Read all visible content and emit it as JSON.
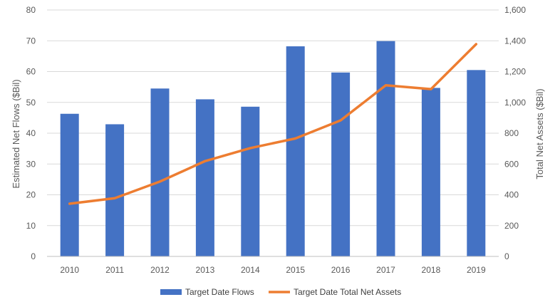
{
  "chart_data": {
    "type": "bar",
    "title": "",
    "categories": [
      "2010",
      "2011",
      "2012",
      "2013",
      "2014",
      "2015",
      "2016",
      "2017",
      "2018",
      "2019"
    ],
    "series": [
      {
        "name": "Target Date Flows",
        "type": "bar",
        "axis": "left",
        "color": "#4472C4",
        "values": [
          46.3,
          42.9,
          54.5,
          51.0,
          48.6,
          68.2,
          59.7,
          69.9,
          54.7,
          60.5
        ]
      },
      {
        "name": "Target Date Total Net Assets",
        "type": "line",
        "axis": "right",
        "color": "#ED7D31",
        "values": [
          342,
          378,
          486,
          619,
          703,
          766,
          883,
          1111,
          1086,
          1378
        ]
      }
    ],
    "y_left": {
      "label": "Estimated Net Flows ($Bil)",
      "range": [
        0,
        80
      ],
      "ticks": [
        0,
        10,
        20,
        30,
        40,
        50,
        60,
        70,
        80
      ],
      "tick_labels": [
        "0",
        "10",
        "20",
        "30",
        "40",
        "50",
        "60",
        "70",
        "80"
      ]
    },
    "y_right": {
      "label": "Total Net Assets ($Bil)",
      "range": [
        0,
        1600
      ],
      "ticks": [
        0,
        200,
        400,
        600,
        800,
        1000,
        1200,
        1400,
        1600
      ],
      "tick_labels": [
        "0",
        "200",
        "400",
        "600",
        "800",
        "1,000",
        "1,200",
        "1,400",
        "1,600"
      ]
    },
    "grid": true,
    "legend_position": "bottom"
  }
}
